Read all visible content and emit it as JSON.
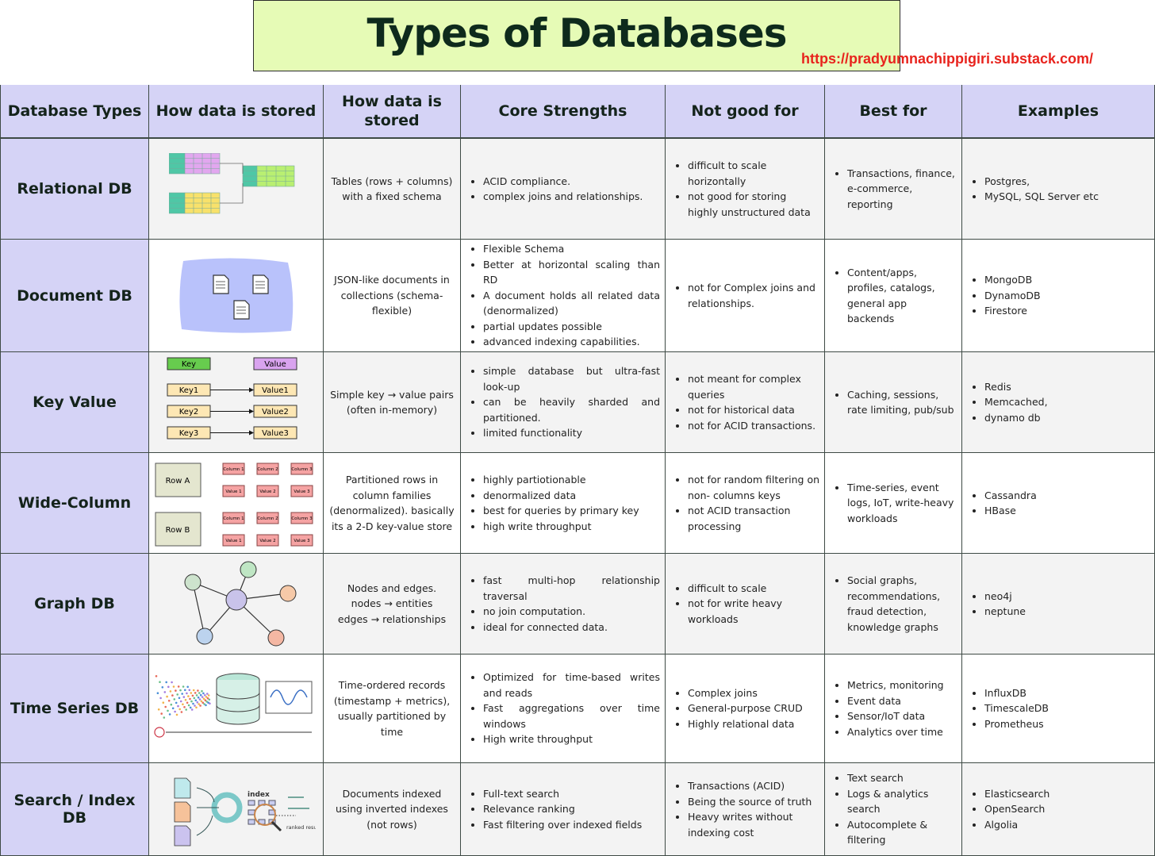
{
  "title": "Types of Databases",
  "url": "https://pradyumnachippigiri.substack.com/",
  "colors": {
    "title_bg": "#e6fbb6",
    "header_bg": "#d5d3f6",
    "url": "#e8231d",
    "title_text": "#0e2a1c"
  },
  "headers": [
    "Database Types",
    "How data is stored",
    "How data is stored",
    "Core Strengths",
    "Not good for",
    "Best for",
    "Examples"
  ],
  "illustration_labels": {
    "key_value": {
      "key": "Key",
      "value": "Value",
      "keys": [
        "Key1",
        "Key2",
        "Key3"
      ],
      "values": [
        "Value1",
        "Value2",
        "Value3"
      ]
    },
    "wide_column": {
      "rows": [
        "Row A",
        "Row B"
      ],
      "columns": [
        "Column 1",
        "Column 2",
        "Column 3"
      ],
      "values": [
        "Value 1",
        "Value 2",
        "Value 3"
      ]
    },
    "search": {
      "index": "index",
      "ranked": "ranked results"
    }
  },
  "rows": [
    {
      "type": "Relational DB",
      "illustration": "tables-diagram",
      "stored": "Tables (rows + columns) with a fixed schema",
      "strengths": [
        "ACID compliance.",
        "complex joins and relationships."
      ],
      "not_good": [
        "difficult to scale horizontally",
        "not good for storing highly unstructured data"
      ],
      "best_for": [
        "Transactions, finance, e-commerce, reporting"
      ],
      "examples": [
        "Postgres,",
        "MySQL, SQL Server etc"
      ]
    },
    {
      "type": "Document DB",
      "illustration": "documents-diagram",
      "stored": "JSON-like documents in collections (schema-flexible)",
      "strengths": [
        "Flexible Schema",
        "Better at horizontal scaling than RD",
        "A document holds all related data (denormalized)",
        "partial updates possible",
        "advanced indexing capabilities."
      ],
      "not_good": [
        "not for Complex joins and relationships."
      ],
      "best_for": [
        "Content/apps, profiles, catalogs, general app backends"
      ],
      "examples": [
        "MongoDB",
        "DynamoDB",
        "Firestore"
      ]
    },
    {
      "type": "Key Value",
      "illustration": "key-value-diagram",
      "stored": "Simple key → value pairs (often in-memory)",
      "strengths": [
        "simple database but ultra-fast look-up",
        "can be heavily sharded and partitioned.",
        "limited functionality"
      ],
      "not_good": [
        "not meant for complex queries",
        "not for historical data",
        "not for ACID transactions."
      ],
      "best_for": [
        "Caching, sessions, rate limiting, pub/sub"
      ],
      "examples": [
        "Redis",
        "Memcached,",
        "dynamo db"
      ]
    },
    {
      "type": "Wide-Column",
      "illustration": "wide-column-diagram",
      "stored": "Partitioned rows in column families (denormalized). basically its a 2-D key-value store",
      "strengths": [
        "highly partiotionable",
        "denormalized data",
        "best for queries by primary key",
        "high write throughput"
      ],
      "not_good": [
        "not for random filtering on non- columns keys",
        "not ACID transaction processing"
      ],
      "best_for": [
        "Time-series, event logs, IoT, write-heavy workloads"
      ],
      "examples": [
        "Cassandra",
        "HBase"
      ]
    },
    {
      "type": "Graph DB",
      "illustration": "graph-diagram",
      "stored": "Nodes and edges.\nnodes → entities\nedges → relationships",
      "strengths": [
        "fast multi-hop relationship traversal",
        "no join computation.",
        "ideal for connected data."
      ],
      "not_good": [
        "difficult to scale",
        "not for write heavy workloads"
      ],
      "best_for": [
        "Social graphs, recommendations, fraud detection, knowledge graphs"
      ],
      "examples": [
        "neo4j",
        "neptune"
      ]
    },
    {
      "type": "Time Series DB",
      "illustration": "time-series-diagram",
      "stored": "Time-ordered records (timestamp + metrics), usually partitioned by time",
      "strengths": [
        "Optimized for time-based writes and reads",
        "Fast aggregations over time windows",
        "High write throughput"
      ],
      "not_good": [
        "Complex joins",
        "General-purpose CRUD",
        "Highly relational data"
      ],
      "best_for": [
        "Metrics, monitoring",
        "Event data",
        "Sensor/IoT data",
        "Analytics over time"
      ],
      "examples": [
        "InfluxDB",
        "TimescaleDB",
        "Prometheus"
      ]
    },
    {
      "type": "Search / Index DB",
      "illustration": "search-index-diagram",
      "stored": "Documents indexed using inverted indexes (not rows)",
      "strengths": [
        "Full-text search",
        "Relevance ranking",
        "Fast filtering over indexed fields"
      ],
      "not_good": [
        "Transactions (ACID)",
        "Being the source of truth",
        "Heavy writes without indexing cost"
      ],
      "best_for": [
        "Text search",
        "Logs & analytics search",
        "Autocomplete & filtering"
      ],
      "examples": [
        "Elasticsearch",
        "OpenSearch",
        "Algolia"
      ]
    }
  ]
}
